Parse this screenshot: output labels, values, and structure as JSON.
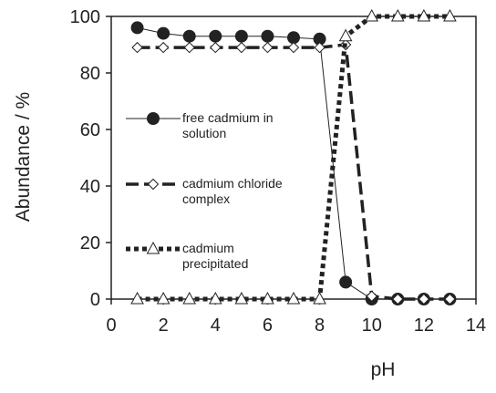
{
  "chart_data": {
    "type": "line",
    "x_label": "pH",
    "y_label": "Abundance / %",
    "x": [
      1,
      2,
      3,
      4,
      5,
      6,
      7,
      8,
      9,
      10,
      11,
      12,
      13
    ],
    "xlim": [
      0,
      14
    ],
    "xticks": [
      0,
      2,
      4,
      6,
      8,
      10,
      12,
      14
    ],
    "ylim": [
      0,
      100
    ],
    "yticks": [
      0,
      20,
      40,
      60,
      80,
      100
    ],
    "series": [
      {
        "name": "free cadmium in solution",
        "color": "#222222",
        "marker": "circle",
        "dash": "solid",
        "values": [
          96,
          94,
          93,
          93,
          93,
          93,
          92.5,
          92,
          6,
          0,
          0,
          0,
          0
        ]
      },
      {
        "name": "cadmium chloride complex",
        "color": "#222222",
        "marker": "diamond",
        "dash": "dashed",
        "values": [
          89,
          89,
          89,
          89,
          89,
          89,
          89,
          89,
          90,
          1,
          0,
          0,
          0
        ]
      },
      {
        "name": "cadmium precipitated",
        "color": "#222222",
        "marker": "triangle",
        "dash": "dotted",
        "values": [
          0,
          0,
          0,
          0,
          0,
          0,
          0,
          0,
          93,
          100,
          100,
          100,
          100
        ]
      }
    ]
  }
}
